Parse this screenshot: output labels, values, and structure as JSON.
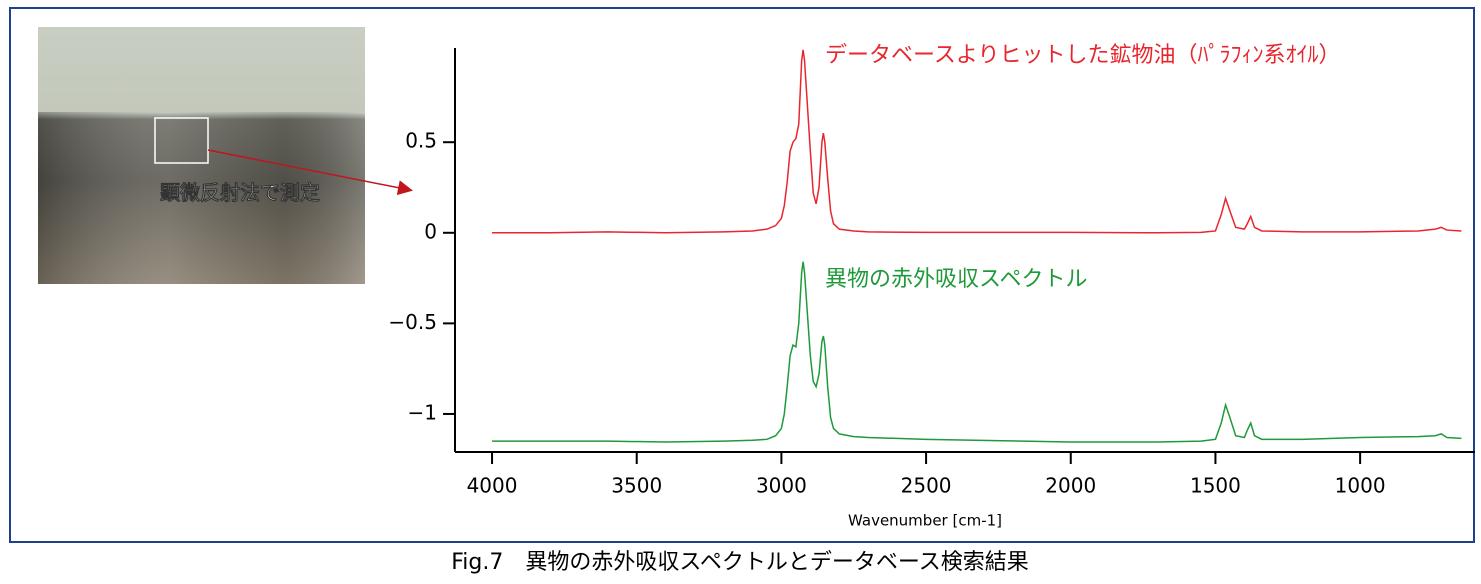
{
  "chart_data": {
    "type": "line",
    "photo_label": "顕微反射法で測定",
    "x_label": "Wavenumber [cm-1]",
    "caption": "Fig.7　異物の赤外吸収スペクトルとデータベース検索結果",
    "x": [
      4000,
      3800,
      3600,
      3400,
      3200,
      3100,
      3050,
      3020,
      3000,
      2990,
      2980,
      2970,
      2960,
      2950,
      2940,
      2930,
      2925,
      2920,
      2910,
      2900,
      2890,
      2880,
      2870,
      2860,
      2855,
      2850,
      2840,
      2830,
      2820,
      2800,
      2750,
      2700,
      2500,
      2000,
      1700,
      1550,
      1500,
      1480,
      1465,
      1450,
      1430,
      1400,
      1390,
      1378,
      1365,
      1340,
      1200,
      1000,
      800,
      740,
      720,
      700,
      650
    ],
    "series": [
      {
        "name": "データベースよりヒットした鉱物油（ﾊﾟﾗﾌｨﾝ系ｵｲﾙ）",
        "color": "#e8262d",
        "values": [
          0,
          0,
          0.005,
          0,
          0.005,
          0.01,
          0.02,
          0.04,
          0.08,
          0.15,
          0.28,
          0.45,
          0.5,
          0.52,
          0.6,
          0.95,
          1.01,
          0.95,
          0.7,
          0.45,
          0.22,
          0.16,
          0.25,
          0.5,
          0.55,
          0.5,
          0.3,
          0.12,
          0.05,
          0.02,
          0.01,
          0.005,
          0.002,
          0.002,
          0,
          0.002,
          0.01,
          0.1,
          0.19,
          0.12,
          0.03,
          0.02,
          0.05,
          0.09,
          0.03,
          0.01,
          0.005,
          0.005,
          0.01,
          0.02,
          0.03,
          0.015,
          0.01
        ]
      },
      {
        "name": "異物の赤外吸収スペクトル",
        "color": "#1f9a3a",
        "values": [
          -1.15,
          -1.15,
          -1.15,
          -1.155,
          -1.15,
          -1.145,
          -1.14,
          -1.12,
          -1.08,
          -1.0,
          -0.85,
          -0.68,
          -0.62,
          -0.63,
          -0.5,
          -0.22,
          -0.16,
          -0.22,
          -0.45,
          -0.68,
          -0.82,
          -0.85,
          -0.78,
          -0.6,
          -0.57,
          -0.62,
          -0.85,
          -1.02,
          -1.08,
          -1.11,
          -1.125,
          -1.13,
          -1.14,
          -1.155,
          -1.155,
          -1.15,
          -1.14,
          -1.05,
          -0.95,
          -1.02,
          -1.12,
          -1.13,
          -1.09,
          -1.05,
          -1.12,
          -1.14,
          -1.14,
          -1.13,
          -1.125,
          -1.12,
          -1.11,
          -1.13,
          -1.135
        ]
      }
    ],
    "xlim": [
      4128,
      603
    ],
    "xticks": [
      4000,
      3500,
      3000,
      2500,
      2000,
      1500,
      1000
    ],
    "ylim": [
      -1.21,
      1.02
    ],
    "yticks": [
      {
        "value": -1,
        "label": "−1"
      },
      {
        "value": -0.5,
        "label": "−0.5"
      },
      0,
      0.5
    ]
  }
}
